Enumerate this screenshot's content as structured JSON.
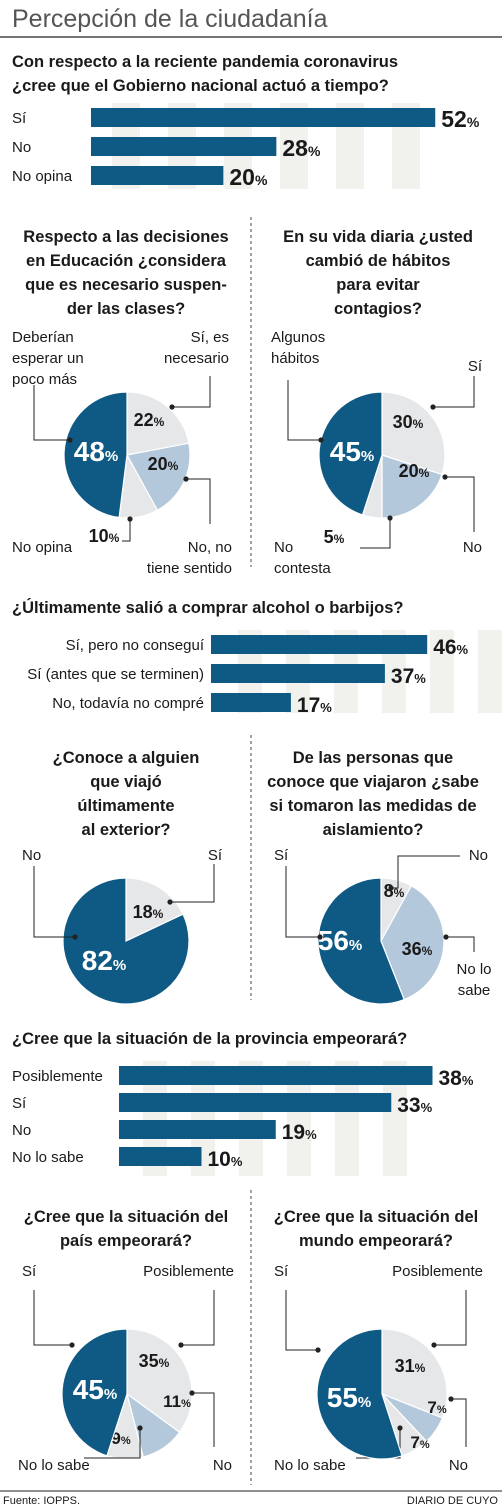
{
  "header": {
    "title": "Percepción de la ciudadanía"
  },
  "footer": {
    "source": "Fuente: IOPPS.",
    "brand": "DIARIO DE CUYO"
  },
  "colors": {
    "dark": "#0f5a84",
    "light": "#b4c8dc",
    "gray": "#e6e7e9",
    "stripe": "#f1f1ee",
    "text": "#1a1a1a",
    "line": "#222222"
  },
  "chart_data": [
    {
      "type": "bar",
      "title": "Con respecto a la reciente pandemia coronavirus ¿cree que el Gobierno nacional actuó a tiempo?",
      "title_lines": [
        "Con respecto a la reciente pandemia coronavirus",
        "¿cree que el Gobierno nacional actuó a tiempo?"
      ],
      "categories": [
        "Sí",
        "No",
        "No opina"
      ],
      "values": [
        52,
        28,
        20
      ],
      "unit": "%"
    },
    {
      "type": "pie",
      "title": "Respecto a las decisiones en Educación ¿considera que es necesario suspender las clases?",
      "title_lines": [
        "Respecto a las decisiones",
        "en Educación ¿considera",
        "que es necesario suspen-",
        "der las clases?"
      ],
      "slices": [
        {
          "label": "Sí, es necesario",
          "label_lines": [
            "Sí, es",
            "necesario"
          ],
          "value": 22,
          "color": "gray"
        },
        {
          "label": "No, no tiene sentido",
          "label_lines": [
            "No, no",
            "tiene sentido"
          ],
          "value": 20,
          "color": "light"
        },
        {
          "label": "No opina",
          "label_lines": [
            "No opina"
          ],
          "value": 10,
          "color": "gray"
        },
        {
          "label": "Deberían esperar un poco más",
          "label_lines": [
            "Deberían",
            "esperar un",
            "poco más"
          ],
          "value": 48,
          "color": "dark"
        }
      ],
      "unit": "%"
    },
    {
      "type": "pie",
      "title": "En su vida diaria ¿usted cambió de hábitos para evitar contagios?",
      "title_lines": [
        "En su vida diaria ¿usted",
        "cambió de hábitos",
        "para evitar",
        "contagios?"
      ],
      "slices": [
        {
          "label": "Sí",
          "label_lines": [
            "Sí"
          ],
          "value": 30,
          "color": "gray"
        },
        {
          "label": "No",
          "label_lines": [
            "No"
          ],
          "value": 20,
          "color": "light"
        },
        {
          "label": "No contesta",
          "label_lines": [
            "No",
            "contesta"
          ],
          "value": 5,
          "color": "gray"
        },
        {
          "label": "Algunos hábitos",
          "label_lines": [
            "Algunos",
            "hábitos"
          ],
          "value": 45,
          "color": "dark"
        }
      ],
      "unit": "%"
    },
    {
      "type": "bar",
      "title": "¿Últimamente salió a comprar alcohol o barbijos?",
      "title_lines": [
        "¿Últimamente salió a comprar alcohol o barbijos?"
      ],
      "categories": [
        "Sí, pero no conseguí",
        "Sí (antes que se terminen)",
        "No, todavía no compré"
      ],
      "values": [
        46,
        37,
        17
      ],
      "unit": "%"
    },
    {
      "type": "pie",
      "title": "¿Conoce a alguien que viajó últimamente al exterior?",
      "title_lines": [
        "¿Conoce a alguien",
        "que viajó",
        "últimamente",
        "al exterior?"
      ],
      "slices": [
        {
          "label": "Sí",
          "label_lines": [
            "Sí"
          ],
          "value": 18,
          "color": "gray"
        },
        {
          "label": "No",
          "label_lines": [
            "No"
          ],
          "value": 82,
          "color": "dark"
        }
      ],
      "unit": "%"
    },
    {
      "type": "pie",
      "title": "De las personas que conoce que viajaron ¿sabe si tomaron las medidas de aislamiento?",
      "title_lines": [
        "De las personas que",
        "conoce que viajaron ¿sabe",
        "si tomaron las medidas de",
        "aislamiento?"
      ],
      "slices": [
        {
          "label": "No",
          "label_lines": [
            "No"
          ],
          "value": 8,
          "color": "gray"
        },
        {
          "label": "No lo sabe",
          "label_lines": [
            "No lo",
            "sabe"
          ],
          "value": 36,
          "color": "light"
        },
        {
          "label": "Sí",
          "label_lines": [
            "Sí"
          ],
          "value": 56,
          "color": "dark"
        }
      ],
      "unit": "%"
    },
    {
      "type": "bar",
      "title": "¿Cree que la situación de la provincia empeorará?",
      "title_lines": [
        "¿Cree que la situación de la provincia empeorará?"
      ],
      "categories": [
        "Posiblemente",
        "Sí",
        "No",
        "No lo sabe"
      ],
      "values": [
        38,
        33,
        19,
        10
      ],
      "unit": "%"
    },
    {
      "type": "pie",
      "title": "¿Cree que la situación del país empeorará?",
      "title_lines": [
        "¿Cree que la situación del",
        "país empeorará?"
      ],
      "slices": [
        {
          "label": "Posiblemente",
          "label_lines": [
            "Posiblemente"
          ],
          "value": 35,
          "color": "gray"
        },
        {
          "label": "No",
          "label_lines": [
            "No"
          ],
          "value": 11,
          "color": "light"
        },
        {
          "label": "No lo sabe",
          "label_lines": [
            "No lo sabe"
          ],
          "value": 9,
          "color": "gray"
        },
        {
          "label": "Sí",
          "label_lines": [
            "Sí"
          ],
          "value": 45,
          "color": "dark"
        }
      ],
      "unit": "%"
    },
    {
      "type": "pie",
      "title": "¿Cree que la situación del mundo empeorará?",
      "title_lines": [
        "¿Cree que la situación del",
        "mundo empeorará?"
      ],
      "slices": [
        {
          "label": "Posiblemente",
          "label_lines": [
            "Posiblemente"
          ],
          "value": 31,
          "color": "gray"
        },
        {
          "label": "No",
          "label_lines": [
            "No"
          ],
          "value": 7,
          "color": "light"
        },
        {
          "label": "No lo sabe",
          "label_lines": [
            "No lo sabe"
          ],
          "value": 7,
          "color": "gray"
        },
        {
          "label": "Sí",
          "label_lines": [
            "Sí"
          ],
          "value": 55,
          "color": "dark"
        }
      ],
      "unit": "%"
    }
  ]
}
